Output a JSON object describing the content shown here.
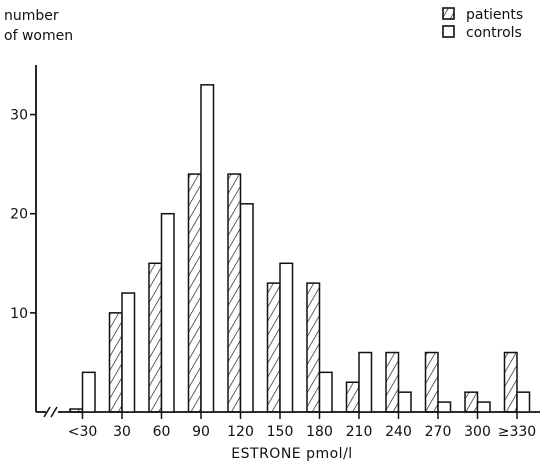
{
  "chart_data": {
    "type": "bar",
    "ylabel_lines": [
      "number",
      "of women"
    ],
    "xlabel": "ESTRONE  pmol/l",
    "categories": [
      "<30",
      "30",
      "60",
      "90",
      "120",
      "150",
      "180",
      "210",
      "240",
      "270",
      "300",
      "≥330"
    ],
    "series": [
      {
        "name": "patients",
        "pattern": "hatched",
        "values": [
          0.3,
          10,
          15,
          24,
          24,
          13,
          13,
          3,
          6,
          6,
          2,
          6
        ]
      },
      {
        "name": "controls",
        "pattern": "open",
        "values": [
          4,
          12,
          20,
          33,
          21,
          15,
          4,
          6,
          2,
          1,
          1,
          2
        ]
      }
    ],
    "ylim": [
      0,
      35
    ],
    "yticks": [
      10,
      20,
      30
    ],
    "ytick_labels": [
      "10",
      "20",
      "30"
    ],
    "grid": false,
    "axis_break_on_x": true,
    "legend": {
      "position": "top-right",
      "entries": [
        "patients",
        "controls"
      ]
    }
  }
}
